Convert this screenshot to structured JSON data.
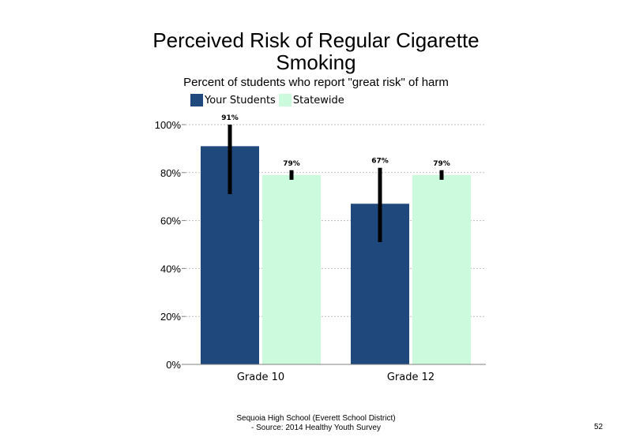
{
  "slide": {
    "title_line1": "Perceived Risk of Regular Cigarette",
    "title_line2": "Smoking",
    "footer_line1": "Sequoia High School (Everett School District)",
    "footer_line2": "- Source: 2014 Healthy Youth Survey",
    "page_number": "52"
  },
  "chart_data": {
    "type": "bar",
    "title": "Perceived Risk of Regular Cigarette Smoking",
    "subtitle": "Percent of students who report \"great risk\" of harm",
    "categories": [
      "Grade 10",
      "Grade 12"
    ],
    "series": [
      {
        "name": "Your Students",
        "values": [
          91,
          67
        ],
        "labels": [
          "91%",
          "67%"
        ],
        "error_low": [
          71,
          51
        ],
        "error_high": [
          100,
          82
        ],
        "color": "#1f497d"
      },
      {
        "name": "Statewide",
        "values": [
          79,
          79
        ],
        "labels": [
          "79%",
          "79%"
        ],
        "error_low": [
          77,
          77
        ],
        "error_high": [
          81,
          81
        ],
        "color": "#ccfadc"
      }
    ],
    "ylim": [
      0,
      100
    ],
    "yticks": [
      0,
      20,
      40,
      60,
      80,
      100
    ],
    "ytick_labels": [
      "0%",
      "20%",
      "40%",
      "60%",
      "80%",
      "100%"
    ],
    "xlabel": "",
    "ylabel": "",
    "grid": true,
    "legend": "top"
  }
}
